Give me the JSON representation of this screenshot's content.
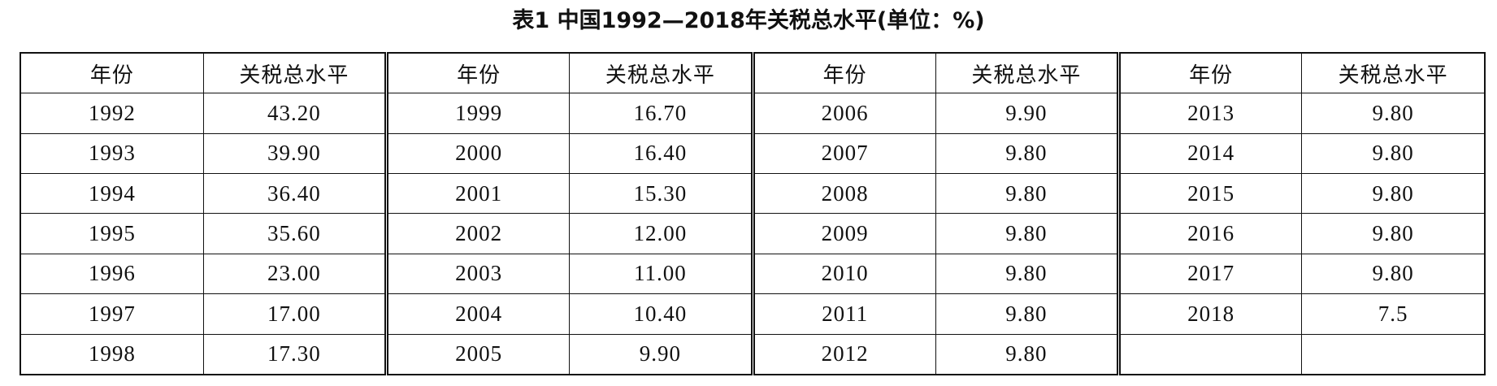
{
  "title": "表1  中国1992—2018年关税总水平(单位：%)",
  "table": {
    "groups": [
      {
        "header": [
          "年份",
          "关税总水平"
        ],
        "rows": [
          [
            "1992",
            "43.20"
          ],
          [
            "1993",
            "39.90"
          ],
          [
            "1994",
            "36.40"
          ],
          [
            "1995",
            "35.60"
          ],
          [
            "1996",
            "23.00"
          ],
          [
            "1997",
            "17.00"
          ],
          [
            "1998",
            "17.30"
          ]
        ]
      },
      {
        "header": [
          "年份",
          "关税总水平"
        ],
        "rows": [
          [
            "1999",
            "16.70"
          ],
          [
            "2000",
            "16.40"
          ],
          [
            "2001",
            "15.30"
          ],
          [
            "2002",
            "12.00"
          ],
          [
            "2003",
            "11.00"
          ],
          [
            "2004",
            "10.40"
          ],
          [
            "2005",
            "9.90"
          ]
        ]
      },
      {
        "header": [
          "年份",
          "关税总水平"
        ],
        "rows": [
          [
            "2006",
            "9.90"
          ],
          [
            "2007",
            "9.80"
          ],
          [
            "2008",
            "9.80"
          ],
          [
            "2009",
            "9.80"
          ],
          [
            "2010",
            "9.80"
          ],
          [
            "2011",
            "9.80"
          ],
          [
            "2012",
            "9.80"
          ]
        ]
      },
      {
        "header": [
          "年份",
          "关税总水平"
        ],
        "rows": [
          [
            "2013",
            "9.80"
          ],
          [
            "2014",
            "9.80"
          ],
          [
            "2015",
            "9.80"
          ],
          [
            "2016",
            "9.80"
          ],
          [
            "2017",
            "9.80"
          ],
          [
            "2018",
            "7.5"
          ]
        ]
      }
    ]
  }
}
